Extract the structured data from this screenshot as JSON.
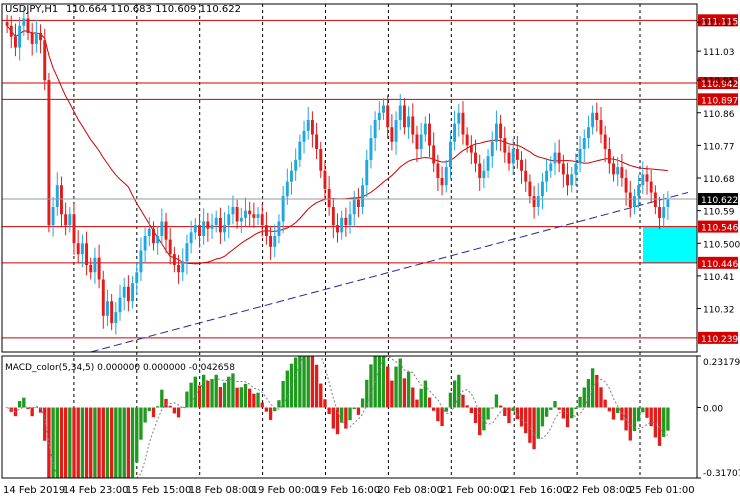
{
  "header": {
    "symbol": "USDJPY,H1",
    "ohlc": "110.664 110.683 110.609 110.622"
  },
  "colors": {
    "bull": "#1ea7e1",
    "bear": "#e31b1b",
    "ma": "#cc0000",
    "trend": "#1f2a9a",
    "hline": "#d20000",
    "price_line": "#8c9aa0",
    "vgrid": "#000000",
    "box": "#00ffff",
    "macd_pos": "#1e9a1e",
    "macd_neg": "#e31b1b",
    "macd_signal": "#808080",
    "price_tag_bg": "#d20000",
    "current_tag_bg": "#000000"
  },
  "chart_data": [
    {
      "type": "candlestick",
      "timeframe": "H1",
      "symbol": "USDJPY",
      "ylim": [
        110.2,
        111.16
      ],
      "y_ticks": [
        111.11,
        111.03,
        110.95,
        110.86,
        110.77,
        110.68,
        110.59,
        110.5,
        110.41,
        110.32
      ],
      "x_ticks": [
        "14 Feb 2019",
        "14 Feb 23:00",
        "15 Feb 15:00",
        "18 Feb 08:00",
        "19 Feb 00:00",
        "19 Feb 16:00",
        "20 Feb 08:00",
        "21 Feb 00:00",
        "21 Feb 16:00",
        "22 Feb 08:00",
        "25 Feb 01:00"
      ],
      "levels": [
        {
          "label": "111.115",
          "value": 111.115
        },
        {
          "label": "110.942",
          "value": 110.942
        },
        {
          "label": "110.897",
          "value": 110.897
        },
        {
          "label": "110.546",
          "value": 110.546
        },
        {
          "label": "110.446",
          "value": 110.446
        },
        {
          "label": "110.239",
          "value": 110.239
        }
      ],
      "current_price": {
        "label": "110.622",
        "value": 110.622
      },
      "highlight_zone": {
        "from": 110.446,
        "to": 110.546
      },
      "closes": [
        111.1,
        111.07,
        111.04,
        111.1,
        111.12,
        111.08,
        111.05,
        111.08,
        111.06,
        110.95,
        110.55,
        110.6,
        110.66,
        110.58,
        110.55,
        110.58,
        110.5,
        110.47,
        110.5,
        110.44,
        110.42,
        110.46,
        110.4,
        110.3,
        110.34,
        110.28,
        110.31,
        110.35,
        110.38,
        110.34,
        110.39,
        110.42,
        110.48,
        110.52,
        110.54,
        110.5,
        110.52,
        110.56,
        110.51,
        110.47,
        110.44,
        110.42,
        110.45,
        110.5,
        110.53,
        110.55,
        110.52,
        110.56,
        110.54,
        110.55,
        110.57,
        110.53,
        110.55,
        110.58,
        110.6,
        110.56,
        110.57,
        110.59,
        110.58,
        110.57,
        110.58,
        110.55,
        110.52,
        110.49,
        110.52,
        110.56,
        110.63,
        110.67,
        110.7,
        110.73,
        110.78,
        110.81,
        110.84,
        110.8,
        110.76,
        110.7,
        110.65,
        110.6,
        110.55,
        110.53,
        110.57,
        110.55,
        110.58,
        110.62,
        110.6,
        110.66,
        110.73,
        110.79,
        110.84,
        110.86,
        110.88,
        110.82,
        110.78,
        110.84,
        110.88,
        110.82,
        110.85,
        110.8,
        110.76,
        110.8,
        110.83,
        110.77,
        110.72,
        110.68,
        110.66,
        110.71,
        110.78,
        110.83,
        110.86,
        110.8,
        110.77,
        110.75,
        110.72,
        110.68,
        110.7,
        110.74,
        110.78,
        110.83,
        110.79,
        110.75,
        110.72,
        110.76,
        110.73,
        110.7,
        110.67,
        110.63,
        110.6,
        110.63,
        110.67,
        110.7,
        110.72,
        110.75,
        110.72,
        110.69,
        110.66,
        110.69,
        110.72,
        110.76,
        110.79,
        110.82,
        110.86,
        110.84,
        110.8,
        110.76,
        110.72,
        110.69,
        110.71,
        110.68,
        110.64,
        110.6,
        110.63,
        110.66,
        110.69,
        110.67,
        110.64,
        110.6,
        110.57,
        110.6,
        110.62
      ],
      "ma_label": "red moving average",
      "macd": {
        "label": "MACD_color(5,34,5) 0.000000 0.000000 -0.042658",
        "ylim": [
          -0.317079,
          0.231795
        ],
        "y_ticks": [
          0.231795,
          0.0,
          -0.317079
        ],
        "y_tick_labels": [
          "0.231795",
          "0.00",
          "-0.317079"
        ]
      }
    }
  ]
}
